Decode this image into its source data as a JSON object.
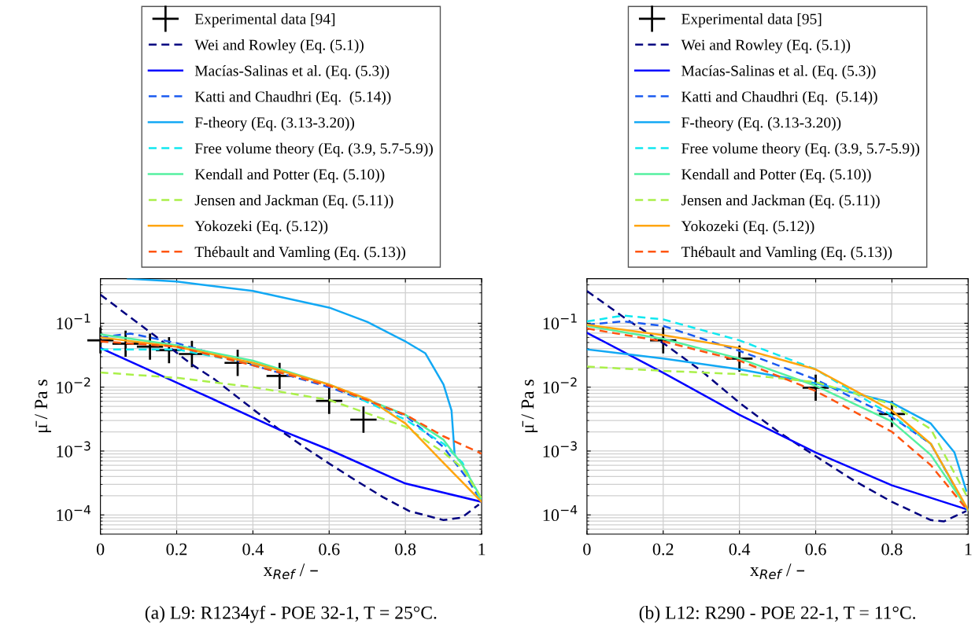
{
  "chart_data": [
    {
      "type": "line",
      "log": "y",
      "grid": true,
      "legend": "top",
      "xlabel": "x$_{Ref}$ / –",
      "ylabel": "μ̄ / Pa s",
      "xlim": [
        0,
        1
      ],
      "ylim": [
        5e-05,
        0.5
      ],
      "xticks": [
        0,
        0.2,
        0.4,
        0.6,
        0.8,
        1
      ],
      "yticks": [
        {
          "value": 0.0001,
          "label": "10$^{−4}$"
        },
        {
          "value": 0.001,
          "label": "10$^{−3}$"
        },
        {
          "value": 0.01,
          "label": "10$^{−2}$"
        },
        {
          "value": 0.1,
          "label": "10$^{−1}$"
        }
      ],
      "annotations": [
        "(a) L9: R1234yf - POE 32-1, T = 25°C."
      ],
      "series": [
        {
          "name": "Experimental data [94]",
          "type": "scatter",
          "marker": "cross",
          "color": "#000000",
          "x": [
            0,
            0.066,
            0.13,
            0.18,
            0.24,
            0.36,
            0.47,
            0.6,
            0.69
          ],
          "values": [
            0.054,
            0.048,
            0.043,
            0.038,
            0.033,
            0.024,
            0.015,
            0.0061,
            0.0031
          ]
        },
        {
          "name": "Wei and Rowley (Eq. (5.1))",
          "line_style": "dashed",
          "color": "#000080",
          "x": [
            0,
            0.141,
            0.238,
            0.3,
            0.369,
            0.472,
            0.535,
            0.603,
            0.672,
            0.741,
            0.81,
            0.9,
            0.948,
            0.993
          ],
          "values": [
            0.28,
            0.065,
            0.023,
            0.0132,
            0.0063,
            0.0021,
            0.00115,
            0.00062,
            0.00034,
            0.00019,
            0.000115,
            8.3e-05,
            9.1e-05,
            0.000146
          ]
        },
        {
          "name": "Macías-Salinas et al. (Eq. (5.3))",
          "line_style": "solid",
          "color": "#0000ff",
          "x": [
            0,
            0.1,
            0.166,
            0.3,
            0.466,
            0.6,
            0.8,
            1
          ],
          "values": [
            0.041,
            0.022,
            0.0146,
            0.0063,
            0.0022,
            0.00105,
            0.00031,
            0.00016
          ]
        },
        {
          "name": "Katti and Chaudhri (Eq.  (5.14))",
          "line_style": "dashed",
          "color": "#1a5af0",
          "x": [
            0,
            0.079,
            0.2,
            0.4,
            0.6,
            0.8,
            0.9,
            0.962,
            1
          ],
          "values": [
            0.06,
            0.069,
            0.049,
            0.022,
            0.01,
            0.0036,
            0.00115,
            0.00037,
            0.00016
          ]
        },
        {
          "name": "F-theory (Eq. (3.13-3.20))",
          "line_style": "solid",
          "color": "#12a8f4",
          "x": [
            0.072,
            0.2,
            0.4,
            0.6,
            0.7,
            0.8,
            0.852,
            0.9,
            0.921,
            0.929
          ],
          "values": [
            0.5,
            0.45,
            0.32,
            0.176,
            0.105,
            0.052,
            0.034,
            0.011,
            0.0043,
            0.00091
          ]
        },
        {
          "name": "Free volume theory (Eq. (3.9, 5.7-5.9))",
          "line_style": "dashed",
          "color": "#10e8f0",
          "x": [
            0,
            0.2,
            0.4,
            0.6,
            0.8,
            0.9,
            0.95,
            1
          ],
          "values": [
            0.039,
            0.039,
            0.023,
            0.011,
            0.0031,
            0.0013,
            0.00065,
            0.00016
          ]
        },
        {
          "name": "Kendall and Potter (Eq. (5.10))",
          "line_style": "solid",
          "color": "#55f0a0",
          "x": [
            0,
            0.2,
            0.4,
            0.6,
            0.8,
            0.9,
            0.95,
            1
          ],
          "values": [
            0.067,
            0.045,
            0.026,
            0.011,
            0.0037,
            0.0015,
            0.0006,
            0.00018
          ]
        },
        {
          "name": "Jensen and Jackman (Eq. (5.11))",
          "line_style": "dashed",
          "color": "#aaf04a",
          "x": [
            0,
            0.2,
            0.4,
            0.6,
            0.8,
            0.9,
            0.95,
            1
          ],
          "values": [
            0.017,
            0.014,
            0.01,
            0.0063,
            0.0024,
            0.00095,
            0.00054,
            0.00018
          ]
        },
        {
          "name": "Yokozeki (Eq. (5.12))",
          "line_style": "solid",
          "color": "#ffa510",
          "x": [
            0,
            0.2,
            0.4,
            0.6,
            0.707,
            0.8,
            0.9,
            1
          ],
          "values": [
            0.06,
            0.043,
            0.024,
            0.011,
            0.0063,
            0.0027,
            0.00065,
            0.00016
          ]
        },
        {
          "name": "Thébault and Vamling (Eq. (5.13))",
          "line_style": "dashed",
          "color": "#ff5511",
          "x": [
            0,
            0.2,
            0.4,
            0.6,
            0.8,
            0.9,
            1
          ],
          "values": [
            0.052,
            0.043,
            0.022,
            0.0105,
            0.0037,
            0.0017,
            0.00091
          ]
        }
      ]
    },
    {
      "type": "line",
      "log": "y",
      "grid": true,
      "legend": "top",
      "xlabel": "x$_{Ref}$ / –",
      "ylabel": "μ̄ / Pa s",
      "xlim": [
        0,
        1
      ],
      "ylim": [
        5e-05,
        0.5
      ],
      "xticks": [
        0,
        0.2,
        0.4,
        0.6,
        0.8,
        1
      ],
      "yticks": [
        {
          "value": 0.0001,
          "label": "10$^{−4}$"
        },
        {
          "value": 0.001,
          "label": "10$^{−3}$"
        },
        {
          "value": 0.01,
          "label": "10$^{−2}$"
        },
        {
          "value": 0.1,
          "label": "10$^{−1}$"
        }
      ],
      "annotations": [
        "(b) L12: R290 - POE 22-1, T = 11°C."
      ],
      "series": [
        {
          "name": "Experimental data [95]",
          "type": "scatter",
          "marker": "cross",
          "color": "#000000",
          "x": [
            0.2,
            0.4,
            0.6,
            0.8
          ],
          "values": [
            0.054,
            0.028,
            0.0098,
            0.0038
          ]
        },
        {
          "name": "Wei and Rowley (Eq. (5.1))",
          "line_style": "dashed",
          "color": "#000080",
          "x": [
            0,
            0.109,
            0.2,
            0.302,
            0.4,
            0.502,
            0.6,
            0.702,
            0.8,
            0.902,
            0.936,
            0.995
          ],
          "values": [
            0.32,
            0.11,
            0.049,
            0.0176,
            0.0057,
            0.002,
            0.00083,
            0.00034,
            0.00016,
            8.3e-05,
            7.9e-05,
            0.000115
          ]
        },
        {
          "name": "Macías-Salinas et al. (Eq. (5.3))",
          "line_style": "solid",
          "color": "#0000ff",
          "x": [
            0,
            0.2,
            0.4,
            0.6,
            0.8,
            1
          ],
          "values": [
            0.071,
            0.0168,
            0.0037,
            0.00095,
            0.00029,
            0.00012
          ]
        },
        {
          "name": "Katti and Chaudhri (Eq.  (5.14))",
          "line_style": "dashed",
          "color": "#1a5af0",
          "x": [
            0,
            0.095,
            0.2,
            0.4,
            0.6,
            0.8,
            0.902,
            1
          ],
          "values": [
            0.095,
            0.107,
            0.091,
            0.037,
            0.0132,
            0.0034,
            0.0013,
            0.000115
          ]
        },
        {
          "name": "F-theory (Eq. (3.13-3.20))",
          "line_style": "solid",
          "color": "#12a8f4",
          "x": [
            0,
            0.2,
            0.4,
            0.6,
            0.8,
            0.902,
            0.964,
            0.995
          ],
          "values": [
            0.039,
            0.028,
            0.019,
            0.0115,
            0.0057,
            0.0027,
            0.00095,
            0.00024
          ]
        },
        {
          "name": "Free volume theory (Eq. (3.9, 5.7-5.9))",
          "line_style": "dashed",
          "color": "#10e8f0",
          "x": [
            0,
            0.095,
            0.2,
            0.4,
            0.6,
            0.8,
            0.902,
            1
          ],
          "values": [
            0.107,
            0.132,
            0.115,
            0.054,
            0.019,
            0.0036,
            0.0013,
            0.000115
          ]
        },
        {
          "name": "Kendall and Potter (Eq. (5.10))",
          "line_style": "solid",
          "color": "#55f0a0",
          "x": [
            0,
            0.2,
            0.4,
            0.6,
            0.8,
            0.902,
            1
          ],
          "values": [
            0.091,
            0.057,
            0.028,
            0.0105,
            0.0029,
            0.00087,
            0.00012
          ]
        },
        {
          "name": "Jensen and Jackman (Eq. (5.11))",
          "line_style": "dashed",
          "color": "#aaf04a",
          "x": [
            0,
            0.2,
            0.4,
            0.6,
            0.8,
            0.902,
            1
          ],
          "values": [
            0.021,
            0.018,
            0.016,
            0.012,
            0.0054,
            0.0022,
            0.00018
          ]
        },
        {
          "name": "Yokozeki (Eq. (5.12))",
          "line_style": "solid",
          "color": "#ffa510",
          "x": [
            0,
            0.2,
            0.4,
            0.6,
            0.8,
            0.902,
            1
          ],
          "values": [
            0.095,
            0.065,
            0.041,
            0.019,
            0.0043,
            0.0013,
            0.00012
          ]
        },
        {
          "name": "Thébault and Vamling (Eq. (5.13))",
          "line_style": "dashed",
          "color": "#ff5511",
          "x": [
            0,
            0.2,
            0.4,
            0.6,
            0.8,
            0.902,
            1
          ],
          "values": [
            0.083,
            0.052,
            0.026,
            0.0087,
            0.002,
            0.0006,
            0.000115
          ]
        }
      ]
    }
  ]
}
